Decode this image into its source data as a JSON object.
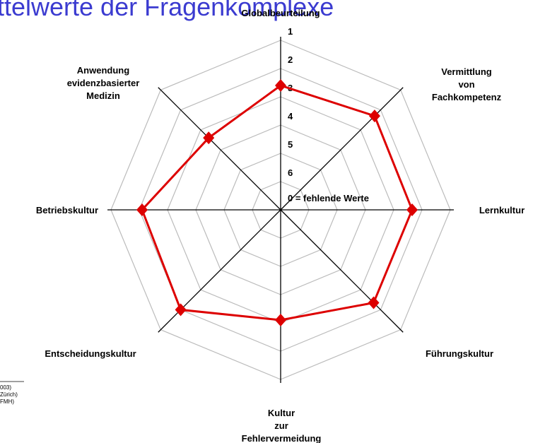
{
  "chart_data": {
    "type": "radar",
    "title": "ttelwerte der Fragenkomplexe",
    "categories": [
      [
        "Globalbeurteilung"
      ],
      [
        "Vermittlung",
        "von",
        "Fachkompetenz"
      ],
      [
        "Lernkultur"
      ],
      [
        "Führungskultur"
      ],
      [
        "Kultur",
        "zur",
        "Fehlervermeidung"
      ],
      [
        "Entscheidungskultur"
      ],
      [
        "Betriebskultur"
      ],
      [
        "Anwendung",
        "evidenzbasierter",
        "Medizin"
      ]
    ],
    "values": [
      2.6,
      2.3,
      2.35,
      2.35,
      3.1,
      2.0,
      2.1,
      3.4
    ],
    "color": "#dd0000",
    "rlim": [
      7,
      1
    ],
    "rticks": [
      1,
      2,
      3,
      4,
      5,
      6,
      {
        "value": 0,
        "label": "0 = fehlende Werte"
      }
    ],
    "notes": [
      "003)",
      "Zürich)",
      "FMH)"
    ]
  }
}
